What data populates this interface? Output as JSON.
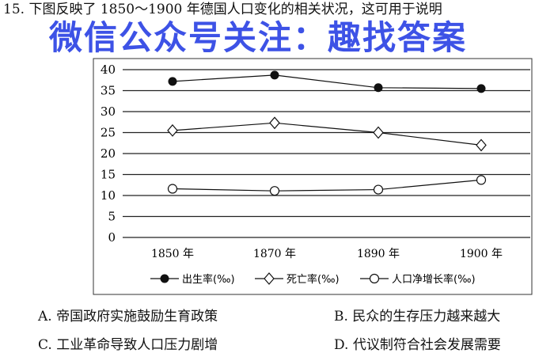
{
  "question": "15. 下图反映了 1850～1900 年德国人口变化的相关状况，这可用于说明",
  "watermark": "微信公众号关注：趣找答案",
  "chart_data": {
    "type": "line",
    "categories": [
      "1850 年",
      "1870 年",
      "1890 年",
      "1900 年"
    ],
    "ylim": [
      0,
      40
    ],
    "yticks": [
      0,
      5,
      10,
      15,
      20,
      25,
      30,
      35,
      40
    ],
    "grid": true,
    "legend_position": "bottom",
    "series": [
      {
        "name": "出生率(‰)",
        "marker": "filled-circle",
        "values": [
          37.2,
          38.7,
          35.7,
          35.5
        ]
      },
      {
        "name": "死亡率(‰)",
        "marker": "open-diamond",
        "values": [
          25.5,
          27.3,
          25.0,
          22.0
        ]
      },
      {
        "name": "人口净增长率(‰)",
        "marker": "open-circle",
        "values": [
          11.6,
          11.1,
          11.4,
          13.7
        ]
      }
    ]
  },
  "options": [
    {
      "label": "A. 帝国政府实施鼓励生育政策"
    },
    {
      "label": "B. 民众的生存压力越来越大"
    },
    {
      "label": "C. 工业革命导致人口压力剧增"
    },
    {
      "label": "D. 代议制符合社会发展需要"
    }
  ]
}
